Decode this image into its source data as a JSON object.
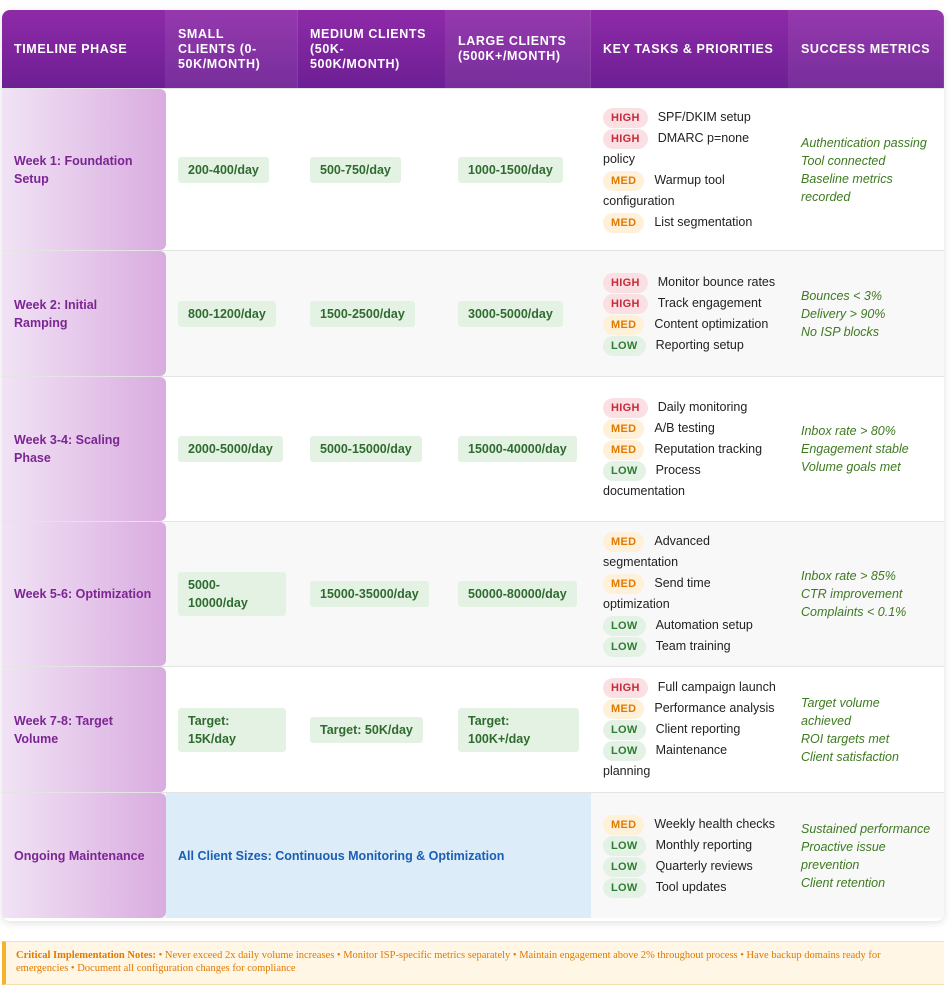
{
  "header": {
    "phase": "TIMELINE PHASE",
    "small": "SMALL CLIENTS (0-50K/MONTH)",
    "medium": "MEDIUM CLIENTS (50K-500K/MONTH)",
    "large": "LARGE CLIENTS (500K+/MONTH)",
    "tasks": "KEY TASKS & PRIORITIES",
    "metrics": "SUCCESS METRICS"
  },
  "rows": [
    {
      "phase": "Week 1: Foundation Setup",
      "small": "200-400/day",
      "medium": "500-750/day",
      "large": "1000-1500/day",
      "tasks": [
        {
          "priority": "HIGH",
          "text": "SPF/DKIM setup"
        },
        {
          "priority": "HIGH",
          "text": "DMARC p=none policy"
        },
        {
          "priority": "MED",
          "text": "Warmup tool configuration"
        },
        {
          "priority": "MED",
          "text": "List segmentation"
        }
      ],
      "metrics": [
        "Authentication passing",
        "Tool connected",
        "Baseline metrics recorded"
      ]
    },
    {
      "phase": "Week 2: Initial Ramping",
      "small": "800-1200/day",
      "medium": "1500-2500/day",
      "large": "3000-5000/day",
      "tasks": [
        {
          "priority": "HIGH",
          "text": "Monitor bounce rates"
        },
        {
          "priority": "HIGH",
          "text": "Track engagement"
        },
        {
          "priority": "MED",
          "text": "Content optimization"
        },
        {
          "priority": "LOW",
          "text": "Reporting setup"
        }
      ],
      "metrics": [
        "Bounces < 3%",
        "Delivery > 90%",
        "No ISP blocks"
      ]
    },
    {
      "phase": "Week 3-4: Scaling Phase",
      "small": "2000-5000/day",
      "medium": "5000-15000/day",
      "large": "15000-40000/day",
      "tasks": [
        {
          "priority": "HIGH",
          "text": "Daily monitoring"
        },
        {
          "priority": "MED",
          "text": "A/B testing"
        },
        {
          "priority": "MED",
          "text": "Reputation tracking"
        },
        {
          "priority": "LOW",
          "text": "Process documentation"
        }
      ],
      "metrics": [
        "Inbox rate > 80%",
        "Engagement stable",
        "Volume goals met"
      ]
    },
    {
      "phase": "Week 5-6: Optimization",
      "small": "5000-10000/day",
      "medium": "15000-35000/day",
      "large": "50000-80000/day",
      "tasks": [
        {
          "priority": "MED",
          "text": "Advanced segmentation"
        },
        {
          "priority": "MED",
          "text": "Send time optimization"
        },
        {
          "priority": "LOW",
          "text": "Automation setup"
        },
        {
          "priority": "LOW",
          "text": "Team training"
        }
      ],
      "metrics": [
        "Inbox rate > 85%",
        "CTR improvement",
        "Complaints < 0.1%"
      ]
    },
    {
      "phase": "Week 7-8: Target Volume",
      "small": "Target: 15K/day",
      "medium": "Target: 50K/day",
      "large": "Target: 100K+/day",
      "tasks": [
        {
          "priority": "HIGH",
          "text": "Full campaign launch"
        },
        {
          "priority": "MED",
          "text": "Performance analysis"
        },
        {
          "priority": "LOW",
          "text": "Client reporting"
        },
        {
          "priority": "LOW",
          "text": "Maintenance planning"
        }
      ],
      "metrics": [
        "Target volume achieved",
        "ROI targets met",
        "Client satisfaction"
      ]
    },
    {
      "phase": "Ongoing Maintenance",
      "all_sizes": "All Client Sizes: Continuous Monitoring & Optimization",
      "tasks": [
        {
          "priority": "MED",
          "text": "Weekly health checks"
        },
        {
          "priority": "LOW",
          "text": "Monthly reporting"
        },
        {
          "priority": "LOW",
          "text": "Quarterly reviews"
        },
        {
          "priority": "LOW",
          "text": "Tool updates"
        }
      ],
      "metrics": [
        "Sustained performance",
        "Proactive issue prevention",
        "Client retention"
      ]
    }
  ],
  "notes": {
    "label": "Critical Implementation Notes:",
    "text": " • Never exceed 2x daily volume increases • Monitor ISP-specific metrics separately • Maintain engagement above 2% throughout process • Have backup domains ready for emergencies • Document all configuration changes for compliance"
  },
  "colors": {
    "header": "#7b2593",
    "phase_text": "#7b2593",
    "volume_bg": "#e4f2e4",
    "high": "#c62b3a",
    "med": "#e07a00",
    "low": "#2e7d32",
    "metrics": "#3d7a1f",
    "maintenance_bg": "#dcecf9"
  }
}
